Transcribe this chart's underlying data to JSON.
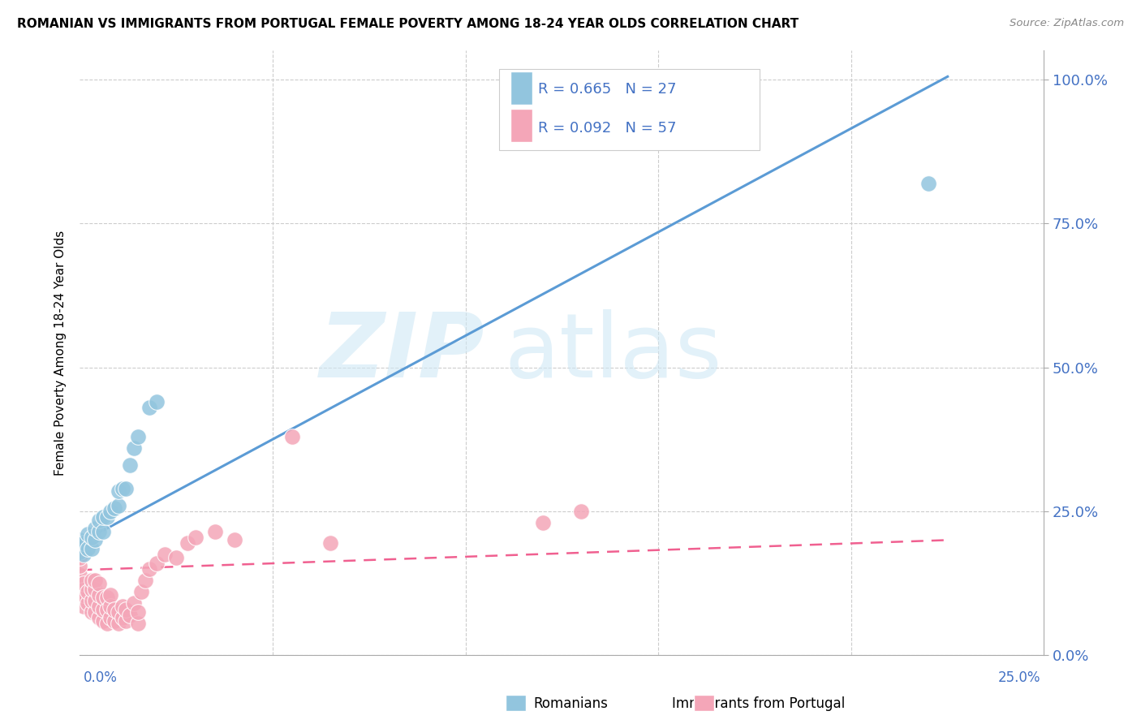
{
  "title": "ROMANIAN VS IMMIGRANTS FROM PORTUGAL FEMALE POVERTY AMONG 18-24 YEAR OLDS CORRELATION CHART",
  "source": "Source: ZipAtlas.com",
  "ylabel": "Female Poverty Among 18-24 Year Olds",
  "yticks": [
    "0.0%",
    "25.0%",
    "50.0%",
    "75.0%",
    "100.0%"
  ],
  "ytick_vals": [
    0.0,
    0.25,
    0.5,
    0.75,
    1.0
  ],
  "xlim": [
    0.0,
    0.25
  ],
  "ylim": [
    0.0,
    1.05
  ],
  "blue_color": "#92c5de",
  "pink_color": "#f4a6b8",
  "line_blue": "#5b9bd5",
  "line_pink": "#f06090",
  "legend1_label": "R = 0.665   N = 27",
  "legend2_label": "R = 0.092   N = 57",
  "bottom_legend1": "Romanians",
  "bottom_legend2": "Immigrants from Portugal",
  "rom_x": [
    0.0,
    0.0,
    0.001,
    0.001,
    0.002,
    0.002,
    0.003,
    0.003,
    0.004,
    0.004,
    0.005,
    0.005,
    0.006,
    0.006,
    0.007,
    0.008,
    0.009,
    0.01,
    0.01,
    0.011,
    0.012,
    0.013,
    0.014,
    0.015,
    0.018,
    0.02,
    0.22
  ],
  "rom_y": [
    0.18,
    0.2,
    0.175,
    0.195,
    0.185,
    0.21,
    0.185,
    0.205,
    0.2,
    0.22,
    0.215,
    0.235,
    0.215,
    0.24,
    0.24,
    0.25,
    0.255,
    0.26,
    0.285,
    0.29,
    0.29,
    0.33,
    0.36,
    0.38,
    0.43,
    0.44,
    0.82
  ],
  "port_x": [
    0.0,
    0.0,
    0.0,
    0.0,
    0.0,
    0.001,
    0.001,
    0.001,
    0.002,
    0.002,
    0.003,
    0.003,
    0.003,
    0.003,
    0.004,
    0.004,
    0.004,
    0.004,
    0.005,
    0.005,
    0.005,
    0.005,
    0.006,
    0.006,
    0.006,
    0.007,
    0.007,
    0.007,
    0.008,
    0.008,
    0.008,
    0.009,
    0.009,
    0.01,
    0.01,
    0.011,
    0.011,
    0.012,
    0.012,
    0.013,
    0.014,
    0.015,
    0.015,
    0.016,
    0.017,
    0.018,
    0.02,
    0.022,
    0.025,
    0.028,
    0.03,
    0.035,
    0.04,
    0.055,
    0.065,
    0.12,
    0.13
  ],
  "port_y": [
    0.1,
    0.12,
    0.14,
    0.155,
    0.17,
    0.085,
    0.105,
    0.125,
    0.09,
    0.11,
    0.075,
    0.095,
    0.115,
    0.13,
    0.075,
    0.095,
    0.115,
    0.13,
    0.065,
    0.085,
    0.105,
    0.125,
    0.06,
    0.08,
    0.1,
    0.055,
    0.08,
    0.1,
    0.065,
    0.085,
    0.105,
    0.06,
    0.08,
    0.055,
    0.075,
    0.065,
    0.085,
    0.06,
    0.08,
    0.07,
    0.09,
    0.055,
    0.075,
    0.11,
    0.13,
    0.15,
    0.16,
    0.175,
    0.17,
    0.195,
    0.205,
    0.215,
    0.2,
    0.38,
    0.195,
    0.23,
    0.25
  ],
  "blue_line_x0": 0.0,
  "blue_line_y0": 0.195,
  "blue_line_x1": 0.225,
  "blue_line_y1": 1.005,
  "pink_line_x0": 0.0,
  "pink_line_y0": 0.148,
  "pink_line_x1": 0.225,
  "pink_line_y1": 0.2
}
